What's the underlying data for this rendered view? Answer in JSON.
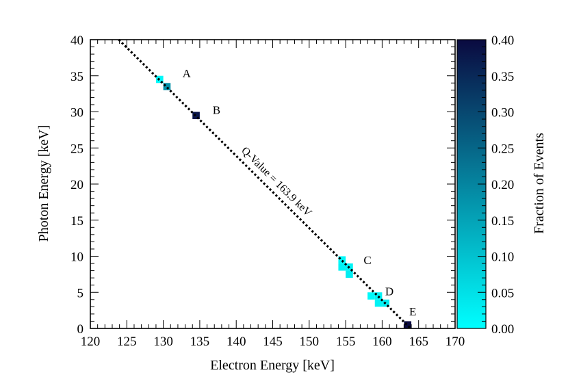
{
  "chart_data": {
    "type": "heatmap",
    "xlabel": "Electron Energy [keV]",
    "ylabel": "Photon Energy [keV]",
    "colorbar_label": "Fraction of Events",
    "xlim": [
      120,
      170
    ],
    "ylim": [
      0,
      40
    ],
    "x_ticks": [
      "120",
      "125",
      "130",
      "135",
      "140",
      "145",
      "150",
      "155",
      "160",
      "165",
      "170"
    ],
    "y_ticks": [
      "0",
      "5",
      "10",
      "15",
      "20",
      "25",
      "30",
      "35",
      "40"
    ],
    "colorbar_range": [
      0.0,
      0.4
    ],
    "colorbar_ticks": [
      "0.00",
      "0.05",
      "0.10",
      "0.15",
      "0.20",
      "0.25",
      "0.30",
      "0.35",
      "0.40"
    ],
    "colormap": [
      "#00ffff",
      "#0a0a40"
    ],
    "cells": [
      {
        "x": 129,
        "y": 34,
        "value": 0.01
      },
      {
        "x": 130,
        "y": 33,
        "value": 0.18
      },
      {
        "x": 134,
        "y": 29,
        "value": 0.38
      },
      {
        "x": 154,
        "y": 9,
        "value": 0.01
      },
      {
        "x": 154,
        "y": 8,
        "value": 0.02
      },
      {
        "x": 155,
        "y": 8,
        "value": 0.02
      },
      {
        "x": 155,
        "y": 7,
        "value": 0.03
      },
      {
        "x": 158,
        "y": 4,
        "value": 0.01
      },
      {
        "x": 159,
        "y": 4,
        "value": 0.02
      },
      {
        "x": 159,
        "y": 3,
        "value": 0.02
      },
      {
        "x": 160,
        "y": 3,
        "value": 0.03
      },
      {
        "x": 163,
        "y": 0,
        "value": 0.4
      }
    ],
    "q_value_line": {
      "label": "Q-Value = 163.9 keV",
      "q": 163.9
    },
    "annotations": [
      {
        "text": "A",
        "x": 133.2,
        "y": 34.8
      },
      {
        "text": "B",
        "x": 137.3,
        "y": 29.7
      },
      {
        "text": "C",
        "x": 158.0,
        "y": 8.9
      },
      {
        "text": "D",
        "x": 161.0,
        "y": 4.6
      },
      {
        "text": "E",
        "x": 164.2,
        "y": 1.8
      }
    ]
  }
}
